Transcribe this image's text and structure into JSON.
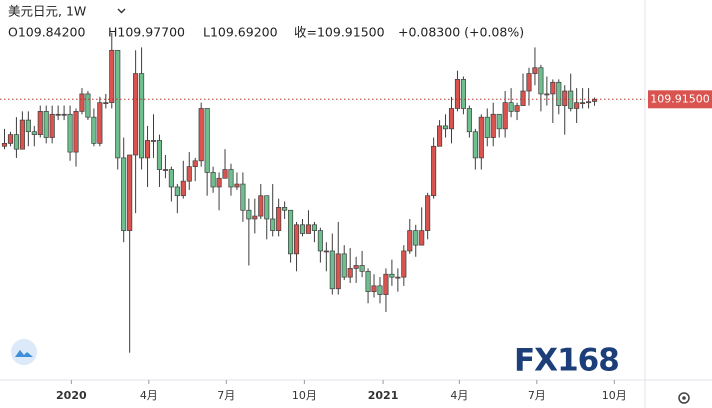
{
  "chart_data": {
    "type": "candlestick",
    "title": "美元日元, 1W",
    "header_values": [
      "O109.84200",
      "H109.97700",
      "L109.69200",
      "收=109.91500",
      "+0.08300 (+0.08%)"
    ],
    "last_price_label": "109.91500",
    "watermark": "FX168",
    "up_color": "#d9534f",
    "down_color": "#6fbf8e",
    "outline_color": "#3d3d3d",
    "ylim": [
      100.4,
      113.33
    ],
    "xticks": [
      {
        "value": 11.3,
        "label": "2020"
      },
      {
        "value": 24.3,
        "label": "4月"
      },
      {
        "value": 37.3,
        "label": "7月"
      },
      {
        "value": 50.4,
        "label": "10月"
      },
      {
        "value": 63.6,
        "label": "2021"
      },
      {
        "value": 76.4,
        "label": "4月"
      },
      {
        "value": 89.4,
        "label": "7月"
      },
      {
        "value": 102.4,
        "label": "10月"
      }
    ],
    "open": [
      108.3,
      108.4,
      108.7,
      108.2,
      109.2,
      108.8,
      108.7,
      109.5,
      108.6,
      109.4,
      109.4,
      109.4,
      108.1,
      109.5,
      110.1,
      109.3,
      108.4,
      109.8,
      109.8,
      111.6,
      107.9,
      105.4,
      108.0,
      110.8,
      107.9,
      108.5,
      108.5,
      107.5,
      107.5,
      106.9,
      106.6,
      107.1,
      107.6,
      107.8,
      109.6,
      107.4,
      106.9,
      107.2,
      107.5,
      106.9,
      107.0,
      106.1,
      105.8,
      105.9,
      106.6,
      105.8,
      105.4,
      106.2,
      106.1,
      104.6,
      105.6,
      105.3,
      105.6,
      105.4,
      104.7,
      104.7,
      103.4,
      104.6,
      103.8,
      104.1,
      104.2,
      104.0,
      103.3,
      103.5,
      103.2,
      103.9,
      103.8,
      103.8,
      104.7,
      105.4,
      104.9,
      105.4,
      106.6,
      108.3,
      109.0,
      108.9,
      109.6,
      110.6,
      109.6,
      108.8,
      107.9,
      109.3,
      108.6,
      109.4,
      108.9,
      109.8,
      109.5,
      109.7,
      110.2,
      110.8,
      111.0,
      110.1,
      110.1,
      110.5,
      109.7,
      110.2,
      109.6,
      109.8,
      109.8,
      109.842
    ],
    "high": [
      108.9,
      108.8,
      109.3,
      109.5,
      109.5,
      109.0,
      109.7,
      109.7,
      109.7,
      109.7,
      109.7,
      109.7,
      109.6,
      110.3,
      110.2,
      109.6,
      110.0,
      110.1,
      112.2,
      111.6,
      108.6,
      108.0,
      111.6,
      111.7,
      109.0,
      109.4,
      108.7,
      108.0,
      107.6,
      107.0,
      107.8,
      108.1,
      107.9,
      109.8,
      109.6,
      107.6,
      107.4,
      108.2,
      107.7,
      107.4,
      107.4,
      106.5,
      106.5,
      107.0,
      106.6,
      107.0,
      106.5,
      106.4,
      106.1,
      105.7,
      105.8,
      106.1,
      105.7,
      105.5,
      105.0,
      105.3,
      105.7,
      104.9,
      104.8,
      104.5,
      104.7,
      104.1,
      103.9,
      103.8,
      104.1,
      104.4,
      104.1,
      104.9,
      105.8,
      105.6,
      106.2,
      106.7,
      108.6,
      109.2,
      109.4,
      110.0,
      110.9,
      110.7,
      109.7,
      108.9,
      109.4,
      109.6,
      109.8,
      109.4,
      110.2,
      110.3,
      109.8,
      110.8,
      111.0,
      111.7,
      111.1,
      110.7,
      110.6,
      110.6,
      110.4,
      110.8,
      110.3,
      110.3,
      110.3,
      109.977
    ],
    "low": [
      108.2,
      108.3,
      107.9,
      108.2,
      108.3,
      108.3,
      108.6,
      108.4,
      108.4,
      109.2,
      109.2,
      107.8,
      107.6,
      109.4,
      109.2,
      108.3,
      108.3,
      109.6,
      109.6,
      107.5,
      105.0,
      101.2,
      106.0,
      107.5,
      106.9,
      107.9,
      106.9,
      107.2,
      106.4,
      106.0,
      106.5,
      106.8,
      107.1,
      107.6,
      106.6,
      106.7,
      106.1,
      107.2,
      106.6,
      106.8,
      105.7,
      104.2,
      105.3,
      105.8,
      105.1,
      105.2,
      105.2,
      105.8,
      104.3,
      104.0,
      105.2,
      105.3,
      105.0,
      104.3,
      104.0,
      103.2,
      103.2,
      103.7,
      103.6,
      103.6,
      103.8,
      102.9,
      103.1,
      102.9,
      102.6,
      103.5,
      103.3,
      103.5,
      104.6,
      104.5,
      104.9,
      105.1,
      106.5,
      108.3,
      108.6,
      108.4,
      109.5,
      109.4,
      108.6,
      107.5,
      107.5,
      108.3,
      108.3,
      108.6,
      108.6,
      109.3,
      109.2,
      109.7,
      109.7,
      110.4,
      109.5,
      109.7,
      109.1,
      109.4,
      108.7,
      109.5,
      109.1,
      109.6,
      109.6,
      109.692
    ],
    "close": [
      108.4,
      108.7,
      108.2,
      109.2,
      108.8,
      108.7,
      109.5,
      108.6,
      109.4,
      109.4,
      109.4,
      108.1,
      109.5,
      110.1,
      109.3,
      108.4,
      109.8,
      109.8,
      111.6,
      107.9,
      105.4,
      108.0,
      110.8,
      107.9,
      108.5,
      108.5,
      107.5,
      107.5,
      106.9,
      106.6,
      107.1,
      107.6,
      107.8,
      109.6,
      107.4,
      106.9,
      107.2,
      107.5,
      106.9,
      107.0,
      106.1,
      105.8,
      105.9,
      106.6,
      105.8,
      105.4,
      106.2,
      106.1,
      104.6,
      105.6,
      105.3,
      105.6,
      105.4,
      104.7,
      104.7,
      103.4,
      104.6,
      103.8,
      104.1,
      104.2,
      104.0,
      103.3,
      103.5,
      103.2,
      103.9,
      103.8,
      103.8,
      104.7,
      105.4,
      104.9,
      105.4,
      106.6,
      108.3,
      109.0,
      108.9,
      109.6,
      110.6,
      109.6,
      108.8,
      107.9,
      109.3,
      108.6,
      109.4,
      108.9,
      109.8,
      109.5,
      109.7,
      110.2,
      110.8,
      111.0,
      110.1,
      110.1,
      110.5,
      109.7,
      110.2,
      109.6,
      109.8,
      109.8,
      109.832,
      109.915
    ]
  }
}
